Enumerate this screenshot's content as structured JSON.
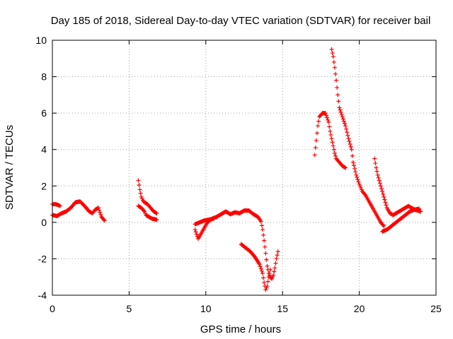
{
  "chart_data": {
    "type": "scatter",
    "title": "Day 185 of 2018, Sidereal Day-to-day VTEC variation (SDTVAR) for receiver bail",
    "xlabel": "GPS time / hours",
    "ylabel": "SDTVAR / TECUs",
    "xlim": [
      0,
      25
    ],
    "ylim": [
      -4,
      10
    ],
    "xticks": [
      "0",
      "5",
      "10",
      "15",
      "20",
      "25"
    ],
    "yticks": [
      "-4",
      "-2",
      "0",
      "2",
      "4",
      "6",
      "8",
      "10"
    ],
    "grid": true,
    "marker": "plus",
    "color": "#ff0000",
    "series": [
      {
        "name": "SDTVAR",
        "segments": [
          [
            [
              0.0,
              1.0
            ],
            [
              0.2,
              1.0
            ],
            [
              0.4,
              0.95
            ],
            [
              0.5,
              0.9
            ]
          ],
          [
            [
              0.0,
              0.4
            ],
            [
              0.3,
              0.35
            ],
            [
              0.6,
              0.5
            ],
            [
              0.9,
              0.6
            ],
            [
              1.2,
              0.8
            ],
            [
              1.5,
              1.1
            ],
            [
              1.8,
              1.15
            ],
            [
              2.1,
              0.9
            ],
            [
              2.4,
              0.6
            ],
            [
              2.6,
              0.5
            ],
            [
              2.8,
              0.7
            ],
            [
              3.0,
              0.8
            ],
            [
              3.2,
              0.3
            ],
            [
              3.4,
              0.1
            ]
          ],
          [
            [
              5.6,
              2.3
            ],
            [
              5.7,
              1.8
            ],
            [
              5.8,
              1.4
            ],
            [
              5.9,
              1.2
            ],
            [
              6.0,
              1.1
            ],
            [
              6.2,
              1.0
            ],
            [
              6.4,
              0.8
            ],
            [
              6.6,
              0.6
            ],
            [
              6.8,
              0.5
            ]
          ],
          [
            [
              5.6,
              0.9
            ],
            [
              5.8,
              0.8
            ],
            [
              6.0,
              0.6
            ],
            [
              6.1,
              0.4
            ],
            [
              6.3,
              0.3
            ],
            [
              6.5,
              0.2
            ],
            [
              6.8,
              0.15
            ]
          ],
          [
            [
              9.3,
              -0.4
            ],
            [
              9.5,
              -0.9
            ],
            [
              9.7,
              -0.6
            ],
            [
              9.9,
              -0.3
            ],
            [
              10.1,
              0.0
            ],
            [
              10.4,
              0.2
            ],
            [
              10.7,
              0.3
            ],
            [
              11.0,
              0.45
            ],
            [
              11.3,
              0.6
            ],
            [
              11.6,
              0.45
            ],
            [
              11.9,
              0.55
            ],
            [
              12.2,
              0.5
            ],
            [
              12.5,
              0.65
            ],
            [
              12.8,
              0.65
            ],
            [
              13.1,
              0.45
            ],
            [
              13.4,
              0.3
            ],
            [
              13.6,
              0.05
            ],
            [
              13.7,
              -0.4
            ],
            [
              13.8,
              -1.0
            ],
            [
              13.9,
              -1.7
            ],
            [
              14.0,
              -2.4
            ],
            [
              14.1,
              -2.8
            ],
            [
              14.2,
              -3.0
            ],
            [
              14.3,
              -3.1
            ],
            [
              14.4,
              -2.9
            ],
            [
              14.5,
              -2.5
            ],
            [
              14.6,
              -2.0
            ],
            [
              14.7,
              -1.6
            ]
          ],
          [
            [
              9.3,
              -0.1
            ],
            [
              9.6,
              0.0
            ],
            [
              9.9,
              0.1
            ],
            [
              10.2,
              0.15
            ],
            [
              10.5,
              0.2
            ]
          ],
          [
            [
              12.3,
              -1.2
            ],
            [
              12.6,
              -1.4
            ],
            [
              12.9,
              -1.6
            ],
            [
              13.2,
              -1.9
            ],
            [
              13.5,
              -2.3
            ],
            [
              13.7,
              -2.8
            ],
            [
              13.8,
              -3.3
            ],
            [
              13.9,
              -3.7
            ],
            [
              14.0,
              -3.5
            ],
            [
              14.1,
              -3.0
            ],
            [
              14.2,
              -2.6
            ]
          ],
          [
            [
              17.1,
              3.7
            ],
            [
              17.2,
              4.5
            ],
            [
              17.3,
              5.3
            ],
            [
              17.4,
              5.8
            ],
            [
              17.6,
              6.0
            ],
            [
              17.8,
              6.0
            ],
            [
              18.0,
              5.5
            ],
            [
              18.1,
              5.0
            ],
            [
              18.2,
              4.6
            ],
            [
              18.3,
              4.2
            ],
            [
              18.4,
              3.8
            ],
            [
              18.5,
              3.5
            ],
            [
              18.7,
              3.3
            ],
            [
              18.9,
              3.1
            ],
            [
              19.1,
              3.0
            ]
          ],
          [
            [
              18.2,
              9.5
            ],
            [
              18.3,
              9.1
            ],
            [
              18.4,
              8.5
            ],
            [
              18.5,
              7.8
            ],
            [
              18.6,
              7.0
            ],
            [
              18.7,
              6.3
            ],
            [
              18.9,
              5.8
            ],
            [
              19.1,
              5.3
            ],
            [
              19.3,
              4.6
            ],
            [
              19.5,
              4.0
            ],
            [
              19.6,
              3.3
            ],
            [
              19.8,
              2.6
            ],
            [
              20.0,
              2.1
            ],
            [
              20.2,
              1.7
            ],
            [
              20.4,
              1.5
            ],
            [
              20.6,
              1.2
            ],
            [
              20.8,
              0.9
            ],
            [
              21.0,
              0.6
            ],
            [
              21.2,
              0.3
            ],
            [
              21.4,
              0.0
            ],
            [
              21.6,
              -0.2
            ]
          ],
          [
            [
              21.0,
              3.5
            ],
            [
              21.1,
              3.0
            ],
            [
              21.2,
              2.6
            ],
            [
              21.4,
              2.0
            ],
            [
              21.6,
              1.4
            ],
            [
              21.8,
              0.8
            ],
            [
              22.0,
              0.5
            ],
            [
              22.2,
              0.4
            ],
            [
              22.4,
              0.5
            ],
            [
              22.6,
              0.6
            ],
            [
              22.8,
              0.7
            ],
            [
              23.0,
              0.8
            ],
            [
              23.2,
              0.9
            ],
            [
              23.4,
              0.8
            ],
            [
              23.6,
              0.7
            ],
            [
              23.8,
              0.65
            ],
            [
              24.0,
              0.6
            ]
          ],
          [
            [
              21.5,
              -0.5
            ],
            [
              21.8,
              -0.4
            ],
            [
              22.1,
              -0.2
            ],
            [
              22.4,
              0.0
            ],
            [
              22.7,
              0.2
            ],
            [
              23.0,
              0.4
            ],
            [
              23.3,
              0.6
            ],
            [
              23.6,
              0.7
            ],
            [
              23.9,
              0.75
            ]
          ]
        ]
      }
    ]
  }
}
